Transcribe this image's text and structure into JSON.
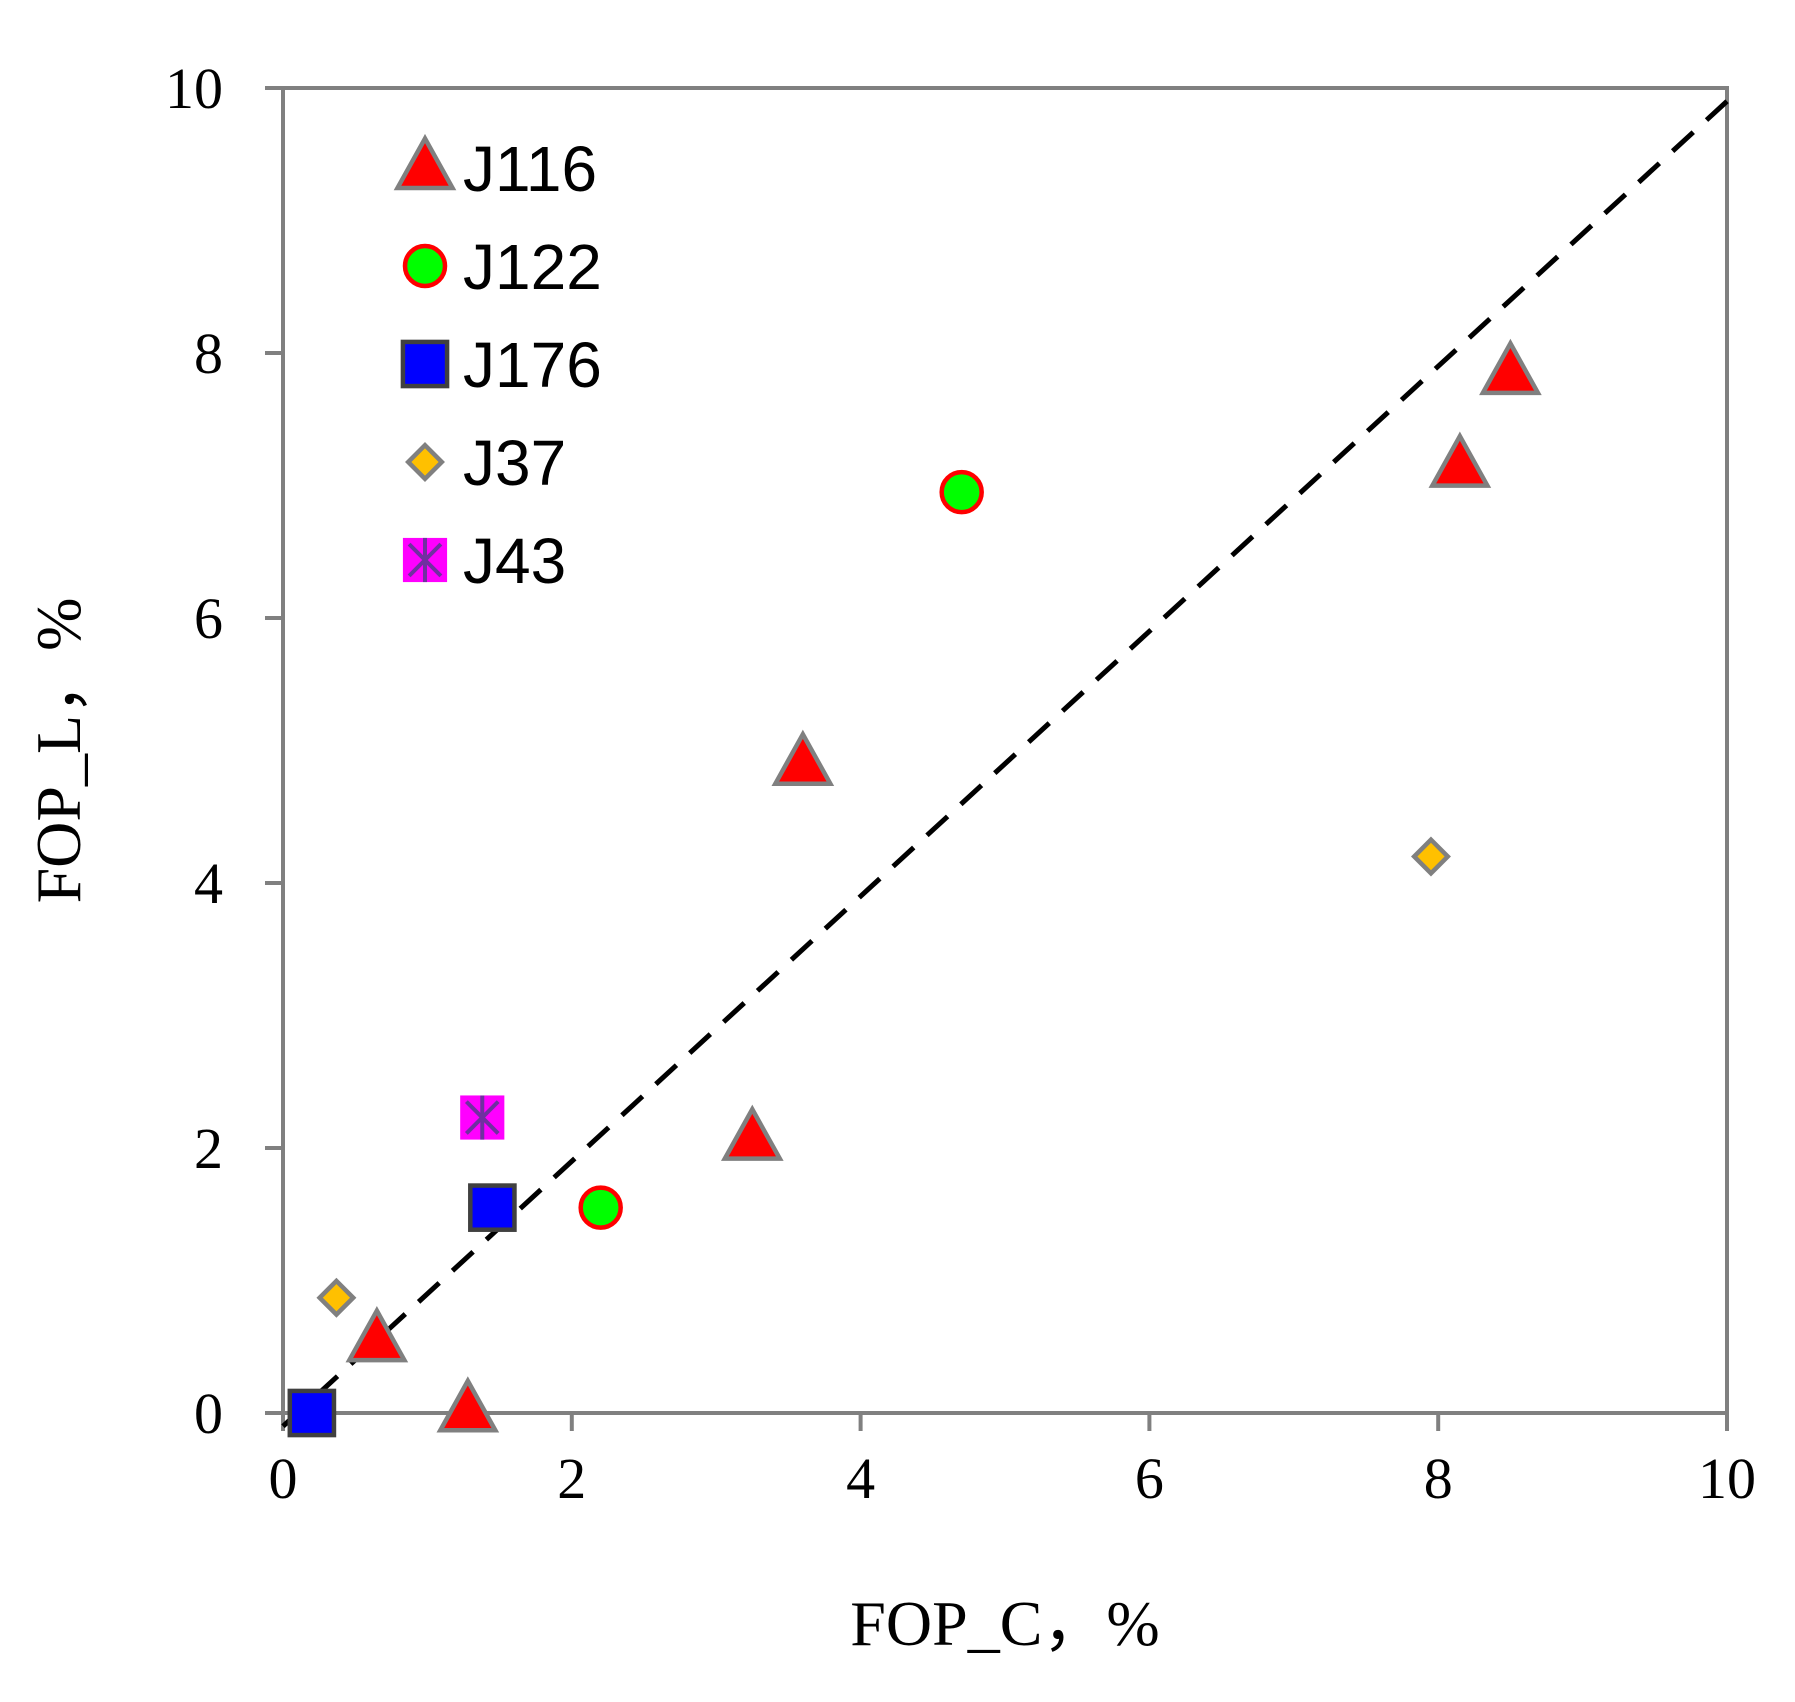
{
  "chart_data": {
    "type": "scatter",
    "title": "",
    "xlabel": "FOP_C，%",
    "ylabel": "FOP_L，%",
    "xlim": [
      0,
      10
    ],
    "ylim": [
      0,
      10
    ],
    "xticks": [
      "0",
      "2",
      "4",
      "6",
      "8",
      "10"
    ],
    "yticks": [
      "0",
      "2",
      "4",
      "6",
      "8",
      "10"
    ],
    "grid": false,
    "legend_position": "top-left",
    "series": [
      {
        "name": "J116",
        "marker": "triangle",
        "fill": "#ff0000",
        "stroke": "#808080",
        "points": [
          [
            0.65,
            0.55
          ],
          [
            1.28,
            0.02
          ],
          [
            3.25,
            2.07
          ],
          [
            3.6,
            4.9
          ],
          [
            8.15,
            7.15
          ],
          [
            8.5,
            7.85
          ]
        ]
      },
      {
        "name": "J122",
        "marker": "circle",
        "fill": "#00ff00",
        "stroke": "#ff0000",
        "points": [
          [
            2.2,
            1.55
          ],
          [
            4.7,
            6.95
          ]
        ]
      },
      {
        "name": "J176",
        "marker": "square",
        "fill": "#0000ff",
        "stroke": "#404040",
        "points": [
          [
            0.2,
            0.0
          ],
          [
            1.45,
            1.55
          ]
        ]
      },
      {
        "name": "J37",
        "marker": "diamond",
        "fill": "#ffc000",
        "stroke": "#808080",
        "points": [
          [
            0.37,
            0.87
          ],
          [
            7.95,
            4.2
          ]
        ]
      },
      {
        "name": "J43",
        "marker": "square-star",
        "fill": "#ff00ff",
        "stroke": "#7030a0",
        "points": [
          [
            1.38,
            2.23
          ]
        ]
      }
    ],
    "reference_line": {
      "style": "dashed",
      "color": "#000000",
      "from": [
        0,
        -0.1
      ],
      "to": [
        10,
        9.9
      ]
    }
  }
}
